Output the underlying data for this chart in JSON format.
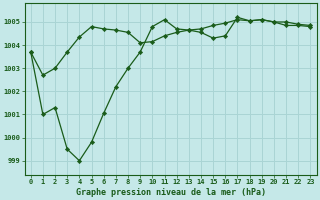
{
  "title": "Graphe pression niveau de la mer (hPa)",
  "background_color": "#c5e8e8",
  "grid_color": "#aad4d4",
  "line_color": "#1a5c1a",
  "marker_color": "#1a5c1a",
  "x_line1": [
    0,
    1,
    2,
    3,
    4,
    5,
    6,
    7,
    8,
    9,
    10,
    11,
    12,
    13,
    14,
    15,
    16,
    17,
    18,
    19,
    20,
    21,
    22,
    23
  ],
  "y_line1": [
    1003.7,
    1002.7,
    1003.0,
    1003.7,
    1004.35,
    1004.8,
    1004.7,
    1004.65,
    1004.55,
    1004.1,
    1004.15,
    1004.4,
    1004.55,
    1004.65,
    1004.7,
    1004.85,
    1004.95,
    1005.1,
    1005.05,
    1005.1,
    1005.0,
    1004.85,
    1004.85,
    1004.8
  ],
  "x_line2": [
    0,
    1,
    2,
    3,
    4,
    5,
    6,
    7,
    8,
    9,
    10,
    11,
    12,
    13,
    14,
    15,
    16,
    17,
    18,
    19,
    20,
    21,
    22,
    23
  ],
  "y_line2": [
    1003.7,
    1001.0,
    1001.3,
    999.5,
    999.0,
    999.8,
    1001.05,
    1002.2,
    1003.0,
    1003.7,
    1004.8,
    1005.1,
    1004.7,
    1004.65,
    1004.55,
    1004.3,
    1004.4,
    1005.2,
    1005.05,
    1005.1,
    1005.0,
    1005.0,
    1004.9,
    1004.85
  ],
  "ylim": [
    998.4,
    1005.8
  ],
  "yticks": [
    999,
    1000,
    1001,
    1002,
    1003,
    1004,
    1005
  ],
  "xlim": [
    -0.5,
    23.5
  ],
  "xticks": [
    0,
    1,
    2,
    3,
    4,
    5,
    6,
    7,
    8,
    9,
    10,
    11,
    12,
    13,
    14,
    15,
    16,
    17,
    18,
    19,
    20,
    21,
    22,
    23
  ],
  "tick_fontsize": 5,
  "xlabel_fontsize": 6
}
